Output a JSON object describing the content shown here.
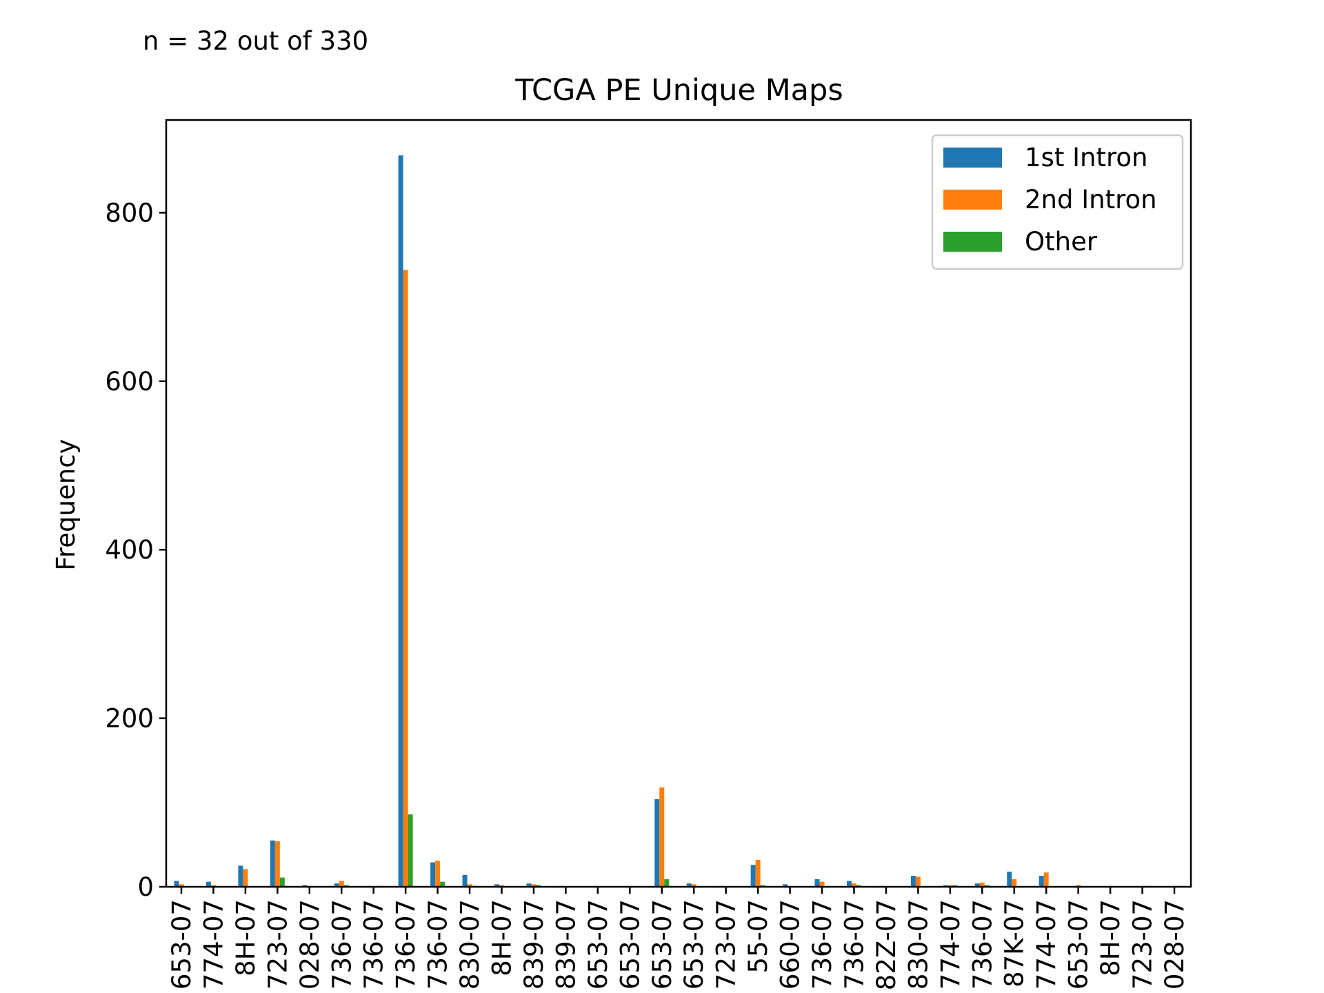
{
  "annotation": "n = 32 out of 330",
  "chart_data": {
    "type": "bar",
    "title": "TCGA PE Unique Maps",
    "xlabel": "",
    "ylabel": "Frequency",
    "ylim": [
      0,
      910
    ],
    "yticks": [
      0,
      200,
      400,
      600,
      800
    ],
    "grid": false,
    "legend_position": "top-right",
    "categories": [
      "653-07",
      "774-07",
      "8H-07",
      "723-07",
      "028-07",
      "736-07",
      "736-07",
      "736-07",
      "736-07",
      "830-07",
      "8H-07",
      "839-07",
      "839-07",
      "653-07",
      "653-07",
      "653-07",
      "653-07",
      "723-07",
      "55-07",
      "660-07",
      "736-07",
      "736-07",
      "82Z-07",
      "830-07",
      "774-07",
      "736-07",
      "87K-07",
      "774-07",
      "653-07",
      "8H-07",
      "723-07",
      "028-07"
    ],
    "series": [
      {
        "name": "1st Intron",
        "color": "#1f77b4",
        "values": [
          7,
          6,
          25,
          55,
          2,
          4,
          1,
          868,
          29,
          14,
          3,
          4,
          1,
          0,
          0,
          104,
          4,
          1,
          26,
          3,
          9,
          7,
          1,
          13,
          2,
          4,
          18,
          13,
          0,
          0,
          0,
          0
        ]
      },
      {
        "name": "2nd Intron",
        "color": "#ff7f0e",
        "values": [
          3,
          2,
          21,
          54,
          1,
          7,
          0,
          732,
          31,
          3,
          2,
          3,
          0,
          1,
          1,
          118,
          3,
          0,
          32,
          0,
          6,
          4,
          0,
          12,
          2,
          5,
          9,
          17,
          2,
          1,
          1,
          1
        ]
      },
      {
        "name": "Other",
        "color": "#2ca02c",
        "values": [
          0,
          0,
          0,
          11,
          0,
          2,
          1,
          86,
          6,
          1,
          0,
          2,
          0,
          0,
          0,
          9,
          0,
          0,
          2,
          0,
          0,
          2,
          0,
          0,
          2,
          2,
          0,
          0,
          0,
          0,
          1,
          1
        ]
      }
    ]
  }
}
